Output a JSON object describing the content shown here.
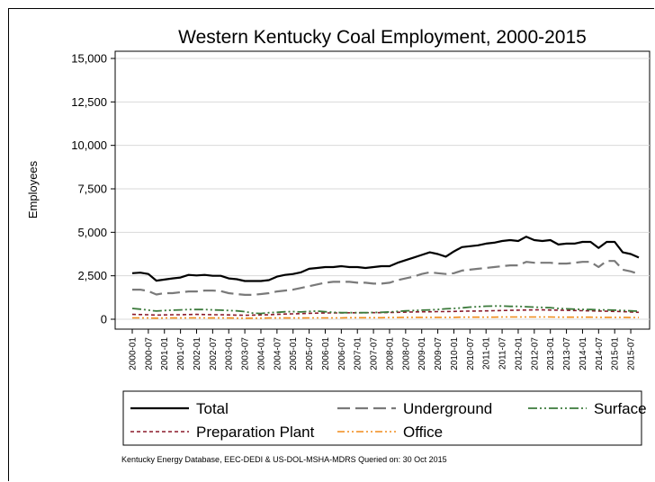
{
  "chart_data": {
    "type": "line",
    "title": "Western Kentucky Coal Employment, 2000-2015",
    "ylabel": "Employees",
    "xlabel": "",
    "ylim": [
      0,
      15000
    ],
    "yticks": [
      0,
      2500,
      5000,
      7500,
      10000,
      12500,
      15000
    ],
    "ytick_labels": [
      "0",
      "2,500",
      "5,000",
      "7,500",
      "10,000",
      "12,500",
      "15,000"
    ],
    "xtick_labels": [
      "2000-01",
      "2000-07",
      "2001-01",
      "2001-07",
      "2002-01",
      "2002-07",
      "2003-01",
      "2003-07",
      "2004-01",
      "2004-07",
      "2005-01",
      "2005-07",
      "2006-01",
      "2006-07",
      "2007-01",
      "2007-07",
      "2008-01",
      "2008-07",
      "2009-01",
      "2009-07",
      "2010-01",
      "2010-07",
      "2011-01",
      "2011-07",
      "2012-01",
      "2012-07",
      "2013-01",
      "2013-07",
      "2014-01",
      "2014-07",
      "2015-01",
      "2015-07"
    ],
    "x": [
      "2000-01",
      "2000-04",
      "2000-07",
      "2000-10",
      "2001-01",
      "2001-04",
      "2001-07",
      "2001-10",
      "2002-01",
      "2002-04",
      "2002-07",
      "2002-10",
      "2003-01",
      "2003-04",
      "2003-07",
      "2003-10",
      "2004-01",
      "2004-04",
      "2004-07",
      "2004-10",
      "2005-01",
      "2005-04",
      "2005-07",
      "2005-10",
      "2006-01",
      "2006-04",
      "2006-07",
      "2006-10",
      "2007-01",
      "2007-04",
      "2007-07",
      "2007-10",
      "2008-01",
      "2008-04",
      "2008-07",
      "2008-10",
      "2009-01",
      "2009-04",
      "2009-07",
      "2009-10",
      "2010-01",
      "2010-04",
      "2010-07",
      "2010-10",
      "2011-01",
      "2011-04",
      "2011-07",
      "2011-10",
      "2012-01",
      "2012-04",
      "2012-07",
      "2012-10",
      "2013-01",
      "2013-04",
      "2013-07",
      "2013-10",
      "2014-01",
      "2014-04",
      "2014-07",
      "2014-10",
      "2015-01",
      "2015-04",
      "2015-07",
      "2015-10"
    ],
    "series": [
      {
        "name": "Total",
        "color": "#000000",
        "dash": "",
        "width": 2.2,
        "values": [
          2650,
          2680,
          2600,
          2220,
          2280,
          2350,
          2400,
          2550,
          2520,
          2550,
          2500,
          2500,
          2350,
          2300,
          2200,
          2200,
          2200,
          2250,
          2450,
          2550,
          2600,
          2700,
          2900,
          2950,
          3000,
          3000,
          3050,
          3000,
          3000,
          2950,
          3000,
          3050,
          3050,
          3250,
          3400,
          3550,
          3700,
          3850,
          3750,
          3600,
          3900,
          4150,
          4200,
          4250,
          4350,
          4400,
          4500,
          4550,
          4500,
          4750,
          4550,
          4500,
          4550,
          4300,
          4350,
          4350,
          4450,
          4450,
          4100,
          4450,
          4450,
          3850,
          3750,
          3550
        ]
      },
      {
        "name": "Underground",
        "color": "#7a7a7a",
        "dash": "14,6",
        "width": 2.2,
        "values": [
          1700,
          1700,
          1620,
          1420,
          1500,
          1500,
          1550,
          1600,
          1600,
          1650,
          1650,
          1620,
          1500,
          1450,
          1400,
          1400,
          1450,
          1500,
          1600,
          1650,
          1700,
          1800,
          1900,
          2000,
          2100,
          2150,
          2150,
          2150,
          2100,
          2100,
          2050,
          2050,
          2100,
          2250,
          2350,
          2450,
          2600,
          2700,
          2650,
          2600,
          2650,
          2800,
          2850,
          2900,
          2950,
          3000,
          3050,
          3100,
          3100,
          3300,
          3250,
          3250,
          3250,
          3200,
          3200,
          3250,
          3300,
          3300,
          3000,
          3350,
          3350,
          2850,
          2750,
          2600
        ]
      },
      {
        "name": "Surface",
        "color": "#3b7a3b",
        "dash": "10,3,2,3,2,3",
        "width": 1.8,
        "values": [
          620,
          580,
          520,
          470,
          500,
          520,
          540,
          560,
          560,
          560,
          540,
          520,
          500,
          480,
          440,
          350,
          330,
          380,
          400,
          430,
          440,
          420,
          450,
          470,
          430,
          400,
          380,
          380,
          380,
          380,
          390,
          400,
          420,
          450,
          480,
          500,
          520,
          540,
          560,
          600,
          620,
          650,
          700,
          720,
          750,
          760,
          760,
          740,
          740,
          720,
          700,
          680,
          660,
          620,
          600,
          580,
          560,
          560,
          540,
          540,
          520,
          500,
          480,
          460
        ]
      },
      {
        "name": "Preparation Plant",
        "color": "#8b1a2a",
        "dash": "4,3",
        "width": 1.6,
        "values": [
          280,
          270,
          260,
          240,
          250,
          260,
          260,
          270,
          280,
          270,
          260,
          260,
          250,
          240,
          230,
          240,
          250,
          260,
          280,
          300,
          310,
          320,
          340,
          350,
          360,
          360,
          360,
          370,
          370,
          370,
          380,
          380,
          390,
          400,
          410,
          420,
          430,
          430,
          440,
          440,
          450,
          460,
          470,
          470,
          480,
          490,
          500,
          510,
          520,
          530,
          540,
          540,
          530,
          520,
          510,
          500,
          490,
          480,
          470,
          460,
          450,
          440,
          420,
          400
        ]
      },
      {
        "name": "Office",
        "color": "#f08c1a",
        "dash": "8,3,2,3,2,3",
        "width": 1.6,
        "values": [
          80,
          80,
          70,
          60,
          70,
          70,
          70,
          80,
          80,
          80,
          70,
          70,
          70,
          60,
          60,
          60,
          60,
          70,
          70,
          70,
          70,
          70,
          80,
          80,
          80,
          80,
          80,
          90,
          90,
          90,
          90,
          90,
          100,
          100,
          110,
          110,
          110,
          110,
          110,
          110,
          110,
          120,
          120,
          120,
          120,
          120,
          130,
          130,
          130,
          130,
          130,
          130,
          130,
          120,
          120,
          120,
          120,
          120,
          110,
          110,
          110,
          110,
          100,
          100
        ]
      }
    ],
    "legend_position": "bottom",
    "grid": true
  },
  "footnote": "Kentucky Energy Database, EEC-DEDI & US-DOL-MSHA-MDRS Queried on: 30 Oct 2015"
}
